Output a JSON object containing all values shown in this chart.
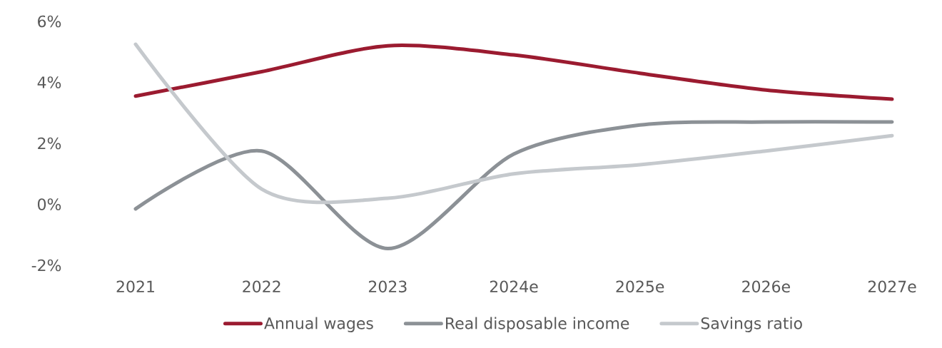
{
  "chart_data": {
    "type": "line",
    "categories": [
      "2021",
      "2022",
      "2023",
      "2024e",
      "2025e",
      "2026e",
      "2027e"
    ],
    "series": [
      {
        "name": "Annual wages",
        "color": "#9b1b30",
        "values": [
          3.55,
          4.35,
          5.2,
          4.9,
          4.3,
          3.75,
          3.45
        ]
      },
      {
        "name": "Real disposable income",
        "color": "#8c9196",
        "values": [
          -0.15,
          1.75,
          -1.45,
          1.65,
          2.6,
          2.7,
          2.7
        ]
      },
      {
        "name": "Savings ratio",
        "color": "#c5c9cd",
        "values": [
          5.25,
          0.5,
          0.2,
          1.0,
          1.3,
          1.75,
          2.25
        ]
      }
    ],
    "ylim": [
      -2,
      6
    ],
    "yticks": [
      {
        "value": -2,
        "label": "-2%"
      },
      {
        "value": 0,
        "label": "0%"
      },
      {
        "value": 2,
        "label": "2%"
      },
      {
        "value": 4,
        "label": "4%"
      },
      {
        "value": 6,
        "label": "6%"
      }
    ],
    "legend": "bottom",
    "grid": false,
    "marker": "none",
    "line_style": "solid"
  }
}
